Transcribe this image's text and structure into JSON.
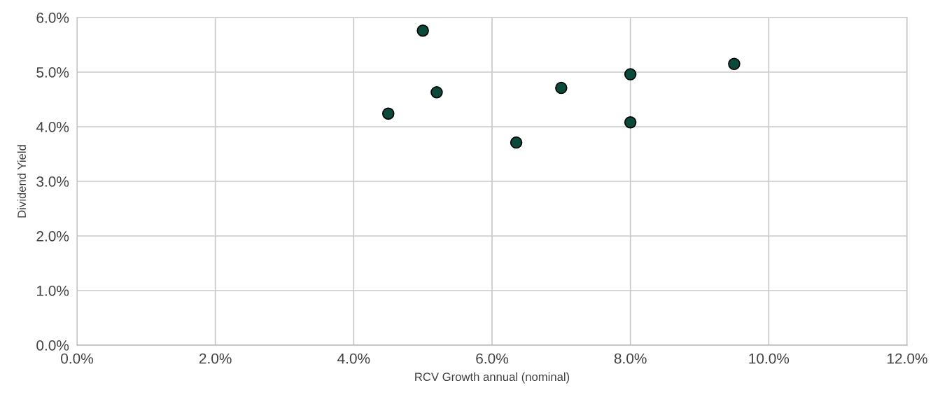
{
  "chart_data": {
    "type": "scatter",
    "xlabel": "RCV Growth annual (nominal)",
    "ylabel": "Dividend Yield",
    "x": [
      5.0,
      4.5,
      5.2,
      6.35,
      7.0,
      8.0,
      8.0,
      9.5
    ],
    "series": [
      {
        "color": "#0b4a3a",
        "values": [
          5.76,
          4.24,
          4.63,
          3.71,
          4.71,
          4.96,
          4.08,
          5.15
        ]
      }
    ],
    "xlim": [
      0,
      12
    ],
    "ylim": [
      0,
      6
    ],
    "xticks": [
      {
        "value": 0,
        "label": "0.0%"
      },
      {
        "value": 2,
        "label": "2.0%"
      },
      {
        "value": 4,
        "label": "4.0%"
      },
      {
        "value": 6,
        "label": "6.0%"
      },
      {
        "value": 8,
        "label": "8.0%"
      },
      {
        "value": 10,
        "label": "10.0%"
      },
      {
        "value": 12,
        "label": "12.0%"
      }
    ],
    "yticks": [
      {
        "value": 0,
        "label": "0.0%"
      },
      {
        "value": 1,
        "label": "1.0%"
      },
      {
        "value": 2,
        "label": "2.0%"
      },
      {
        "value": 3,
        "label": "3.0%"
      },
      {
        "value": 4,
        "label": "4.0%"
      },
      {
        "value": 5,
        "label": "5.0%"
      },
      {
        "value": 6,
        "label": "6.0%"
      }
    ],
    "grid": true,
    "marker": "circle",
    "legend": false
  }
}
